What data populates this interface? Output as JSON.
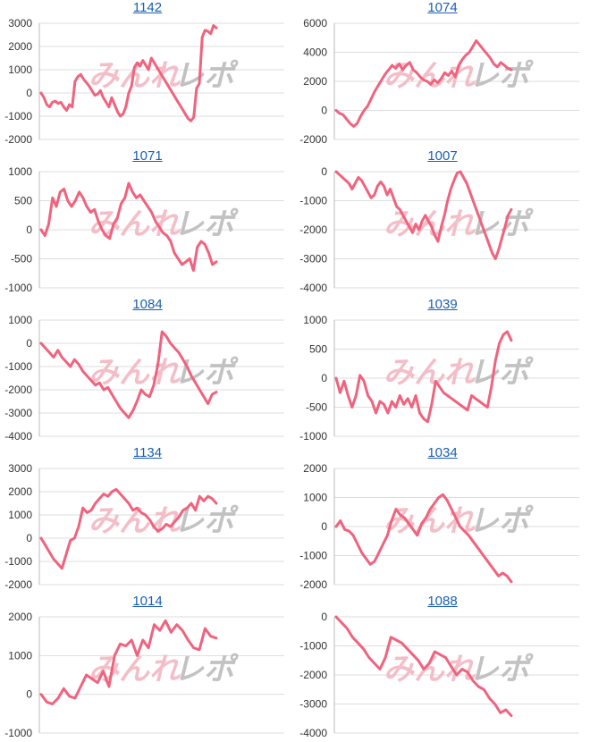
{
  "colors": {
    "line": "#f0637e",
    "grid": "#dddddd",
    "axis": "#bbbbbb",
    "title": "#1a5fb4",
    "watermark_pink": "#f3b3bf",
    "watermark_gray": "#b8b8b8"
  },
  "watermark": {
    "left": "みんれ",
    "right": "レポ"
  },
  "chart_data": [
    {
      "type": "line",
      "title": "1142",
      "yticks": [
        3000,
        2000,
        1000,
        0,
        -1000,
        -2000
      ],
      "ylim": [
        -2000,
        3000
      ],
      "values": [
        0,
        -200,
        -500,
        -600,
        -400,
        -350,
        -450,
        -400,
        -600,
        -750,
        -500,
        -600,
        500,
        700,
        800,
        600,
        450,
        300,
        100,
        -100,
        -50,
        100,
        -200,
        -400,
        -600,
        -200,
        -500,
        -800,
        -1000,
        -900,
        -600,
        0,
        300,
        1100,
        1300,
        1150,
        1400,
        1200,
        1000,
        1500,
        1300,
        1100,
        900,
        700,
        500,
        300,
        100,
        -100,
        -300,
        -500,
        -700,
        -900,
        -1100,
        -1200,
        -1050,
        200,
        400,
        2400,
        2700,
        2650,
        2550,
        2900,
        2800
      ]
    },
    {
      "type": "line",
      "title": "1074",
      "yticks": [
        6000,
        4000,
        2000,
        0,
        -2000
      ],
      "ylim": [
        -2000,
        6000
      ],
      "values": [
        0,
        -200,
        -300,
        -600,
        -900,
        -1100,
        -900,
        -400,
        0,
        300,
        800,
        1300,
        1700,
        2100,
        2500,
        2800,
        3100,
        2900,
        3200,
        2800,
        3100,
        3300,
        2800,
        2600,
        2300,
        2100,
        2000,
        1800,
        2100,
        1900,
        2200,
        2600,
        2400,
        2700,
        2300,
        3100,
        3500,
        3800,
        4000,
        4400,
        4800,
        4500,
        4200,
        3900,
        3600,
        3200,
        3000,
        3300,
        3100,
        2900,
        2800
      ]
    },
    {
      "type": "line",
      "title": "1071",
      "yticks": [
        1000,
        500,
        0,
        -500,
        -1000
      ],
      "ylim": [
        -1000,
        1000
      ],
      "values": [
        0,
        -100,
        100,
        550,
        400,
        650,
        700,
        500,
        400,
        500,
        650,
        550,
        400,
        300,
        350,
        150,
        0,
        -100,
        -150,
        100,
        200,
        450,
        550,
        800,
        650,
        550,
        600,
        500,
        400,
        300,
        150,
        50,
        -50,
        -100,
        -200,
        -400,
        -500,
        -600,
        -550,
        -500,
        -700,
        -300,
        -200,
        -250,
        -400,
        -600,
        -550
      ]
    },
    {
      "type": "line",
      "title": "1007",
      "yticks": [
        0,
        -1000,
        -2000,
        -3000,
        -4000
      ],
      "ylim": [
        -4000,
        0
      ],
      "values": [
        0,
        -100,
        -200,
        -300,
        -400,
        -600,
        -400,
        -200,
        -300,
        -500,
        -700,
        -900,
        -800,
        -500,
        -350,
        -500,
        -800,
        -600,
        -900,
        -1200,
        -1300,
        -1500,
        -1700,
        -1900,
        -2100,
        -1800,
        -2000,
        -1700,
        -1500,
        -1700,
        -1900,
        -2200,
        -2400,
        -1900,
        -1500,
        -1000,
        -600,
        -300,
        -50,
        0,
        -200,
        -400,
        -700,
        -1000,
        -1300,
        -1600,
        -1900,
        -2200,
        -2500,
        -2800,
        -3000,
        -2700,
        -2300,
        -1900,
        -1500,
        -1300
      ]
    },
    {
      "type": "line",
      "title": "1084",
      "yticks": [
        1000,
        0,
        -1000,
        -2000,
        -3000,
        -4000
      ],
      "ylim": [
        -4000,
        1000
      ],
      "values": [
        0,
        -200,
        -400,
        -600,
        -300,
        -600,
        -800,
        -1000,
        -700,
        -900,
        -1200,
        -1400,
        -1600,
        -1800,
        -1700,
        -2000,
        -1900,
        -2200,
        -2500,
        -2800,
        -3000,
        -3200,
        -2900,
        -2500,
        -2000,
        -2200,
        -2300,
        -1800,
        -900,
        500,
        300,
        0,
        -200,
        -400,
        -700,
        -1000,
        -1400,
        -1700,
        -2000,
        -2300,
        -2600,
        -2200,
        -2100
      ]
    },
    {
      "type": "line",
      "title": "1039",
      "yticks": [
        1000,
        500,
        0,
        -500,
        -1000
      ],
      "ylim": [
        -1000,
        1000
      ],
      "values": [
        0,
        -250,
        -50,
        -300,
        -500,
        -300,
        50,
        -50,
        -300,
        -400,
        -600,
        -400,
        -450,
        -600,
        -400,
        -500,
        -300,
        -450,
        -350,
        -500,
        -300,
        -600,
        -700,
        -750,
        -450,
        -50,
        -150,
        -250,
        -300,
        -350,
        -400,
        -450,
        -500,
        -550,
        -300,
        -350,
        -400,
        -450,
        -500,
        -150,
        300,
        600,
        750,
        800,
        650
      ]
    },
    {
      "type": "line",
      "title": "1134",
      "yticks": [
        3000,
        2000,
        1000,
        0,
        -1000,
        -2000
      ],
      "ylim": [
        -2000,
        3000
      ],
      "values": [
        0,
        -300,
        -600,
        -900,
        -1100,
        -1300,
        -700,
        -100,
        0,
        500,
        1300,
        1100,
        1200,
        1500,
        1700,
        1900,
        1800,
        2000,
        2100,
        1900,
        1700,
        1500,
        1200,
        1300,
        1100,
        1000,
        800,
        500,
        300,
        400,
        600,
        500,
        700,
        900,
        1200,
        1300,
        1500,
        1200,
        1800,
        1600,
        1800,
        1700,
        1500
      ]
    },
    {
      "type": "line",
      "title": "1034",
      "yticks": [
        2000,
        1000,
        0,
        -1000,
        -2000
      ],
      "ylim": [
        -2000,
        2000
      ],
      "values": [
        0,
        200,
        -100,
        -150,
        -300,
        -600,
        -900,
        -1100,
        -1300,
        -1200,
        -900,
        -600,
        -300,
        200,
        600,
        400,
        300,
        100,
        -100,
        -300,
        100,
        300,
        600,
        800,
        1000,
        1100,
        900,
        600,
        300,
        0,
        -150,
        -300,
        -500,
        -700,
        -900,
        -1100,
        -1300,
        -1500,
        -1700,
        -1600,
        -1700,
        -1900
      ]
    },
    {
      "type": "line",
      "title": "1014",
      "yticks": [
        2000,
        1000,
        0,
        -1000
      ],
      "ylim": [
        -1000,
        2000
      ],
      "values": [
        0,
        -200,
        -250,
        -100,
        150,
        -50,
        -100,
        200,
        500,
        400,
        300,
        600,
        200,
        1000,
        1300,
        1250,
        1400,
        1000,
        1400,
        1200,
        1800,
        1650,
        1900,
        1600,
        1800,
        1650,
        1400,
        1200,
        1150,
        1700,
        1500,
        1450
      ]
    },
    {
      "type": "line",
      "title": "1088",
      "yticks": [
        0,
        -1000,
        -2000,
        -3000,
        -4000
      ],
      "ylim": [
        -4000,
        0
      ],
      "values": [
        0,
        -200,
        -400,
        -700,
        -900,
        -1100,
        -1400,
        -1600,
        -1800,
        -1400,
        -700,
        -800,
        -900,
        -1100,
        -1300,
        -1500,
        -1800,
        -1600,
        -1200,
        -1300,
        -1400,
        -1700,
        -2000,
        -1800,
        -1900,
        -2200,
        -2400,
        -2500,
        -2800,
        -3000,
        -3300,
        -3200,
        -3400
      ]
    }
  ]
}
